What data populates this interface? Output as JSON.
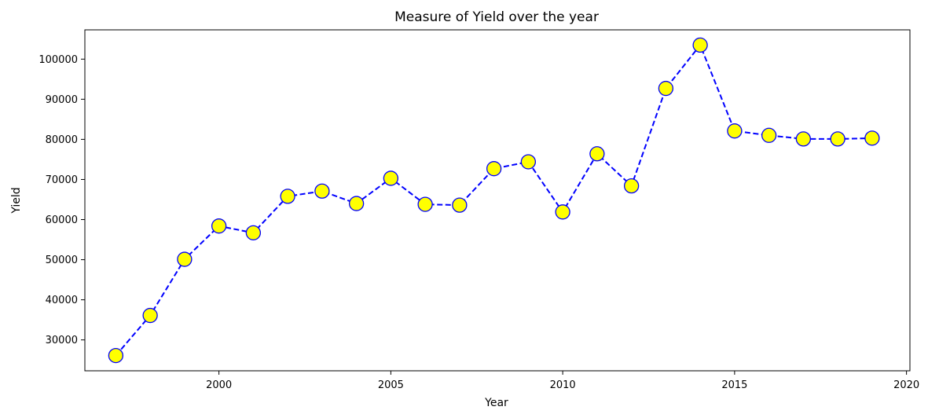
{
  "chart_data": {
    "type": "line",
    "title": "Measure of Yield over the year",
    "xlabel": "Year",
    "ylabel": "Yield",
    "x": [
      1997,
      1998,
      1999,
      2000,
      2001,
      2002,
      2003,
      2004,
      2005,
      2006,
      2007,
      2008,
      2009,
      2010,
      2011,
      2012,
      2013,
      2014,
      2015,
      2016,
      2017,
      2018,
      2019
    ],
    "series": [
      {
        "values": [
          26100,
          36100,
          50100,
          58400,
          56700,
          65800,
          67100,
          64000,
          70300,
          63800,
          63600,
          72700,
          74400,
          61900,
          76400,
          68400,
          92700,
          103500,
          82100,
          81000,
          80100,
          80100,
          80300
        ],
        "line_color": "#0000ff",
        "line_style": "dashed",
        "marker": "circle",
        "marker_face_color": "#ffff00",
        "marker_edge_color": "#0000ff"
      }
    ],
    "xlim": [
      1996.1,
      2020.1
    ],
    "ylim": [
      22300,
      107300
    ],
    "xticks": [
      2000,
      2005,
      2010,
      2015,
      2020
    ],
    "yticks": [
      30000,
      40000,
      50000,
      60000,
      70000,
      80000,
      90000,
      100000
    ],
    "grid": false,
    "legend": false
  }
}
